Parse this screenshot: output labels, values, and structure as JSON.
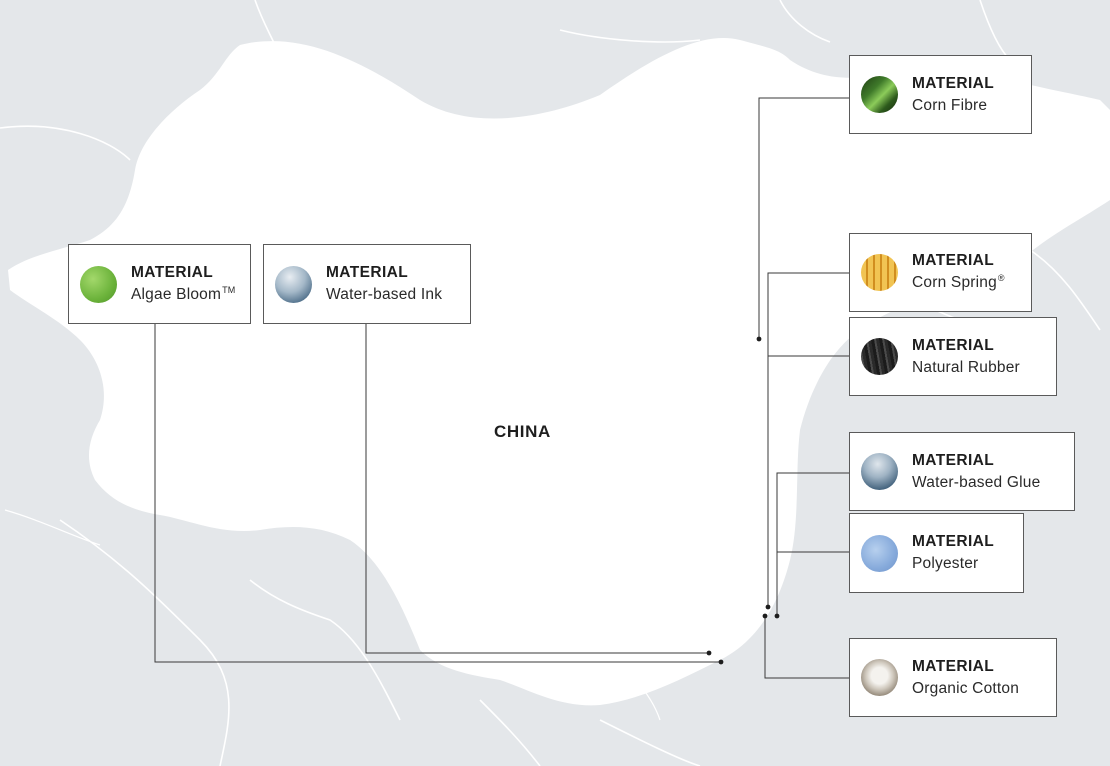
{
  "map": {
    "country_label": "CHINA",
    "colors": {
      "background": "#e4e7ea",
      "land": "#ffffff",
      "border_lines": "#ffffff",
      "connector": "#3a3a3a"
    }
  },
  "materials": [
    {
      "id": "algae-bloom",
      "kind": "MATERIAL",
      "name": "Algae Bloom",
      "mark": "TM",
      "icon": "algae-texture-icon",
      "color": "#7cc04a"
    },
    {
      "id": "water-based-ink",
      "kind": "MATERIAL",
      "name": "Water-based Ink",
      "mark": "",
      "icon": "water-texture-icon",
      "color": "#6f8fa8"
    },
    {
      "id": "corn-fibre",
      "kind": "MATERIAL",
      "name": "Corn Fibre",
      "mark": "",
      "icon": "corn-leaf-icon",
      "color": "#3f7a2a"
    },
    {
      "id": "corn-spring",
      "kind": "MATERIAL",
      "name": "Corn Spring",
      "mark": "®",
      "icon": "corn-kernel-icon",
      "color": "#e2a62a"
    },
    {
      "id": "natural-rubber",
      "kind": "MATERIAL",
      "name": "Natural Rubber",
      "mark": "",
      "icon": "rubber-bark-icon",
      "color": "#2c2c2c"
    },
    {
      "id": "water-based-glue",
      "kind": "MATERIAL",
      "name": "Water-based Glue",
      "mark": "",
      "icon": "water-texture-icon",
      "color": "#5f7f9a"
    },
    {
      "id": "polyester",
      "kind": "MATERIAL",
      "name": "Polyester",
      "mark": "",
      "icon": "polyester-fabric-icon",
      "color": "#8fb3e0"
    },
    {
      "id": "organic-cotton",
      "kind": "MATERIAL",
      "name": "Organic Cotton",
      "mark": "",
      "icon": "cotton-boll-icon",
      "color": "#c9c3b8"
    }
  ]
}
